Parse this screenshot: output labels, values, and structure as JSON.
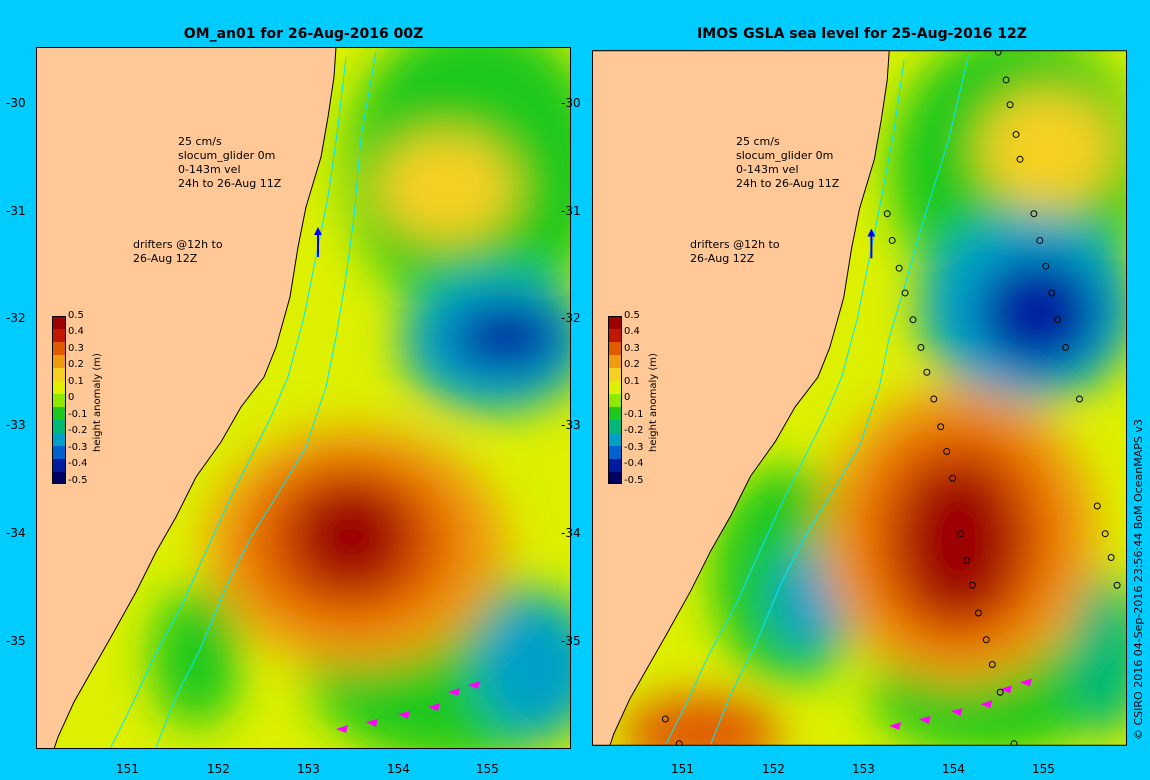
{
  "titles": {
    "left": "OM_an01 for 26-Aug-2016 00Z",
    "right": "IMOS GSLA sea level  for 25-Aug-2016 12Z"
  },
  "axes": {
    "lat_ticks": [
      "-30",
      "-31",
      "-32",
      "-33",
      "-34",
      "-35"
    ],
    "lon_ticks": [
      "151",
      "152",
      "153",
      "154",
      "155"
    ]
  },
  "legend": {
    "speed": "25 cm/s",
    "glider": "slocum_glider 0m",
    "vel": "0-143m vel",
    "window": "24h to 26-Aug 11Z",
    "drifters_1": "drifters @12h to",
    "drifters_2": "26-Aug 12Z"
  },
  "colorbar": {
    "title": "height anomaly (m)",
    "labels": [
      "0.5",
      "0.4",
      "0.3",
      "0.2",
      "0.1",
      "0",
      "-0.1",
      "-0.2",
      "-0.3",
      "-0.4",
      "-0.5"
    ],
    "colors": [
      "#9c0000",
      "#c21800",
      "#e05a00",
      "#f09a10",
      "#f5d020",
      "#ddf000",
      "#8ee800",
      "#1fc81f",
      "#00b878",
      "#00a0c8",
      "#0060d0",
      "#001aa0",
      "#000060"
    ]
  },
  "credit": "© CSIRO 2016  04-Sep-2016 23:56:44 BoM OceanMAPS v3",
  "colors": {
    "background": "#00ccff",
    "land": "#ffc896",
    "coast": "#000000",
    "bathy_contour": "#00e5ff",
    "drifter_arrow": "#ff00ff",
    "glider_arrow": "#0000ff"
  }
}
